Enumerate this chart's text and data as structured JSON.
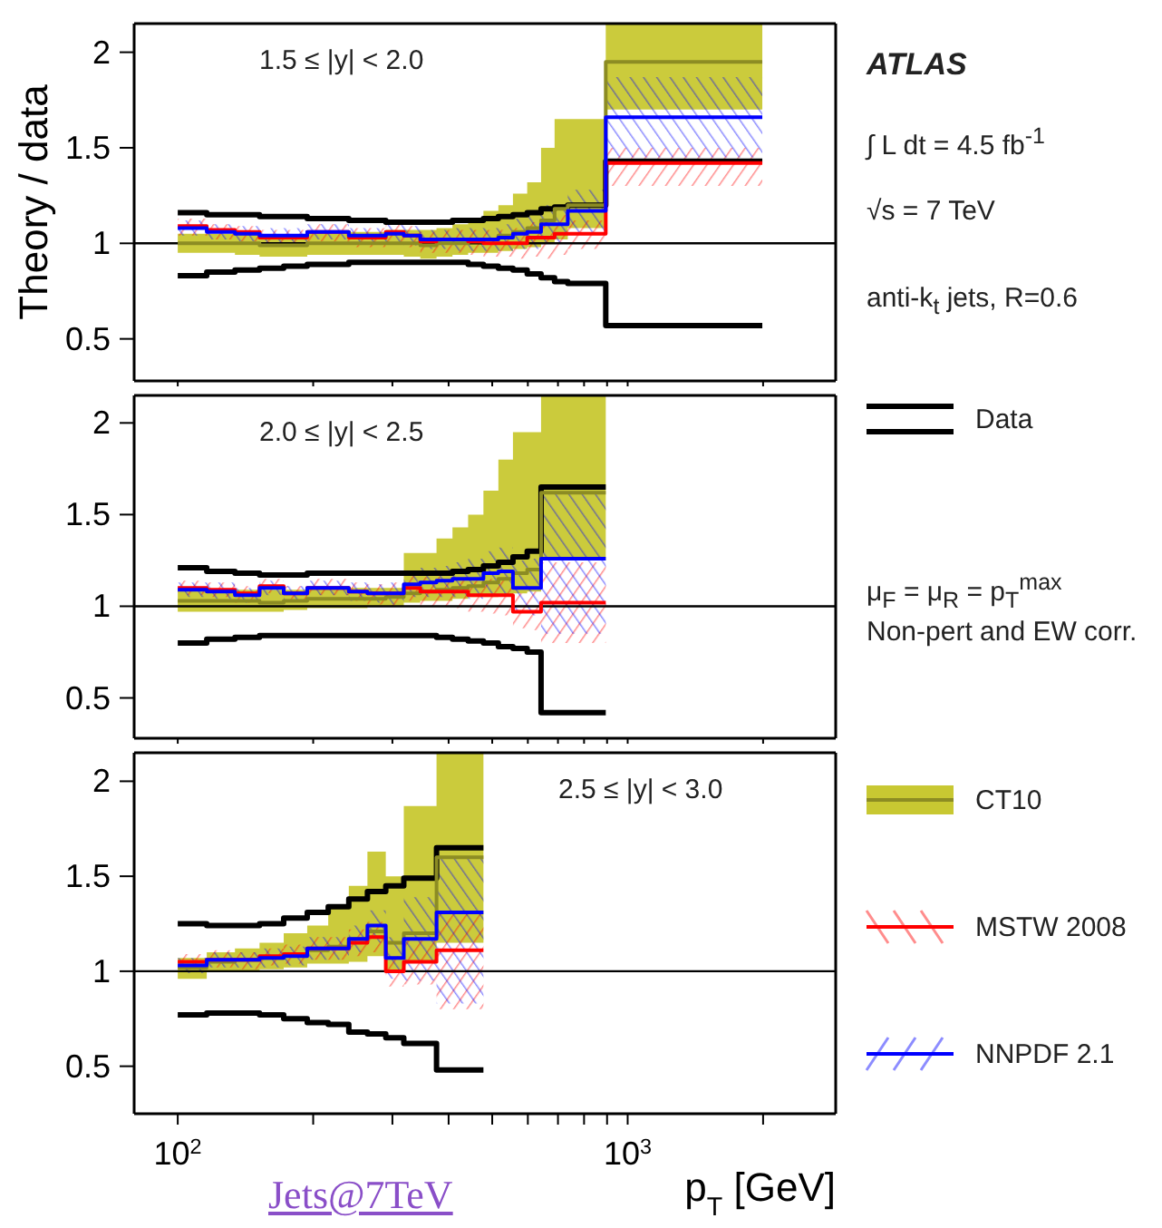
{
  "chart_data": [
    {
      "type": "step",
      "title": "1.5 ≤ |y| < 2.0",
      "ylabel": "Theory / data",
      "legend": "right",
      "tick_labels": "y",
      "grid": false,
      "marker": "none",
      "annotations": [
        "ATLAS",
        "∫ L dt = 4.5 fb$^{-1}$",
        "√s = 7 TeV",
        "anti-k$_{t}$ jets,  R=0.6",
        "μ$_{F}$ = μ$_{R}$ = p$_{T}$$^{max}$",
        "Non-pert and EW corr."
      ],
      "x": [
        100,
        116,
        134,
        152,
        172,
        194,
        216,
        240,
        264,
        290,
        318,
        346,
        376,
        408,
        442,
        478,
        516,
        556,
        598,
        642,
        688,
        736,
        894,
        1992
      ],
      "xlim": [
        80,
        2900
      ],
      "ylim": [
        0.28,
        2.15
      ],
      "log": "x",
      "xticks": [
        {
          "value": 100,
          "label": null
        },
        {
          "value": 200,
          "label": null
        },
        {
          "value": 300,
          "label": null
        },
        {
          "value": 400,
          "label": null
        },
        {
          "value": 500,
          "label": null
        },
        {
          "value": 600,
          "label": null
        },
        {
          "value": 700,
          "label": null
        },
        {
          "value": 800,
          "label": null
        },
        {
          "value": 900,
          "label": null
        },
        {
          "value": 1000,
          "label": null
        },
        {
          "value": 2000,
          "label": null
        }
      ],
      "yticks": [
        0.5,
        1,
        1.5,
        2
      ],
      "ref_lines": [
        {
          "axis": "y",
          "value": 1,
          "color": "#000000"
        }
      ],
      "series": [
        {
          "name": "Data",
          "color": "#000000",
          "values": [
            1.16,
            1.15,
            1.15,
            1.14,
            1.14,
            1.13,
            1.13,
            1.12,
            1.12,
            1.11,
            1.11,
            1.11,
            1.11,
            1.12,
            1.12,
            1.13,
            1.14,
            1.15,
            1.16,
            1.18,
            1.19,
            1.2,
            1.43,
            1.43
          ]
        },
        {
          "color": "#000000",
          "values": [
            0.83,
            0.85,
            0.86,
            0.87,
            0.88,
            0.89,
            0.89,
            0.9,
            0.9,
            0.9,
            0.9,
            0.9,
            0.9,
            0.9,
            0.89,
            0.88,
            0.87,
            0.86,
            0.84,
            0.82,
            0.8,
            0.79,
            0.57,
            0.57
          ]
        },
        {
          "name": "CT10",
          "color": "#c8c832",
          "values": [
            1.0,
            1.0,
            1.0,
            0.99,
            0.99,
            1.0,
            1.0,
            1.0,
            1.0,
            1.0,
            1.0,
            0.99,
            1.0,
            1.0,
            1.01,
            1.02,
            1.04,
            1.06,
            1.08,
            1.12,
            1.18,
            1.2,
            1.95,
            1.95
          ],
          "lower": [
            0.95,
            0.95,
            0.94,
            0.93,
            0.93,
            0.94,
            0.94,
            0.94,
            0.94,
            0.94,
            0.93,
            0.92,
            0.93,
            0.94,
            0.95,
            0.95,
            0.96,
            0.97,
            0.98,
            1.0,
            1.02,
            1.08,
            1.7,
            1.7
          ],
          "upper": [
            1.05,
            1.05,
            1.05,
            1.04,
            1.04,
            1.05,
            1.05,
            1.06,
            1.06,
            1.07,
            1.07,
            1.07,
            1.08,
            1.1,
            1.13,
            1.17,
            1.2,
            1.26,
            1.32,
            1.5,
            1.65,
            1.65,
            2.15,
            2.15
          ]
        },
        {
          "name": "MSTW 2008",
          "color": "#ff0000",
          "values": [
            1.09,
            1.07,
            1.06,
            1.03,
            1.03,
            1.06,
            1.06,
            1.03,
            1.03,
            1.06,
            1.04,
            1.01,
            1.02,
            1.02,
            1.01,
            1.0,
            1.0,
            1.0,
            1.03,
            1.03,
            1.05,
            1.05,
            1.42,
            1.42
          ],
          "lower": [
            1.04,
            1.02,
            1.01,
            0.99,
            0.99,
            1.01,
            1.01,
            0.98,
            0.98,
            1.0,
            0.98,
            0.95,
            0.95,
            0.95,
            0.94,
            0.93,
            0.93,
            0.92,
            0.93,
            0.92,
            0.94,
            0.97,
            1.3,
            1.3
          ],
          "upper": [
            1.13,
            1.1,
            1.09,
            1.07,
            1.07,
            1.1,
            1.1,
            1.08,
            1.08,
            1.1,
            1.09,
            1.06,
            1.07,
            1.07,
            1.07,
            1.07,
            1.07,
            1.08,
            1.11,
            1.12,
            1.15,
            1.12,
            1.5,
            1.5
          ]
        },
        {
          "name": "NNPDF 2.1",
          "color": "#0000ff",
          "values": [
            1.08,
            1.06,
            1.05,
            1.04,
            1.04,
            1.06,
            1.06,
            1.04,
            1.04,
            1.05,
            1.04,
            1.02,
            1.02,
            1.02,
            1.02,
            1.02,
            1.03,
            1.05,
            1.06,
            1.1,
            1.1,
            1.17,
            1.66,
            1.66
          ],
          "lower": [
            1.04,
            1.02,
            1.01,
            1.0,
            1.0,
            1.02,
            1.02,
            1.0,
            1.0,
            1.0,
            0.99,
            0.97,
            0.97,
            0.96,
            0.96,
            0.96,
            0.96,
            0.97,
            0.97,
            1.0,
            1.0,
            1.05,
            1.45,
            1.45
          ],
          "upper": [
            1.12,
            1.1,
            1.09,
            1.08,
            1.08,
            1.1,
            1.1,
            1.08,
            1.08,
            1.1,
            1.09,
            1.07,
            1.07,
            1.08,
            1.08,
            1.08,
            1.1,
            1.13,
            1.15,
            1.2,
            1.2,
            1.28,
            1.87,
            1.87
          ]
        }
      ]
    },
    {
      "type": "step",
      "title": "2.0 ≤ |y| < 2.5",
      "tick_labels": "y",
      "grid": false,
      "marker": "none",
      "x": [
        100,
        116,
        134,
        152,
        172,
        194,
        216,
        240,
        264,
        290,
        318,
        346,
        376,
        408,
        442,
        478,
        516,
        556,
        598,
        642,
        894
      ],
      "xlim": [
        80,
        2900
      ],
      "ylim": [
        0.28,
        2.15
      ],
      "log": "x",
      "xticks": [
        {
          "value": 100,
          "label": null
        },
        {
          "value": 200,
          "label": null
        },
        {
          "value": 300,
          "label": null
        },
        {
          "value": 400,
          "label": null
        },
        {
          "value": 500,
          "label": null
        },
        {
          "value": 600,
          "label": null
        },
        {
          "value": 700,
          "label": null
        },
        {
          "value": 800,
          "label": null
        },
        {
          "value": 900,
          "label": null
        },
        {
          "value": 1000,
          "label": null
        },
        {
          "value": 2000,
          "label": null
        }
      ],
      "yticks": [
        0.5,
        1,
        1.5,
        2
      ],
      "ref_lines": [
        {
          "axis": "y",
          "value": 1,
          "color": "#000000"
        }
      ],
      "series": [
        {
          "color": "#000000",
          "values": [
            1.21,
            1.19,
            1.18,
            1.17,
            1.17,
            1.18,
            1.18,
            1.18,
            1.18,
            1.18,
            1.18,
            1.18,
            1.18,
            1.19,
            1.2,
            1.22,
            1.24,
            1.27,
            1.3,
            1.65,
            1.65
          ]
        },
        {
          "color": "#000000",
          "values": [
            0.8,
            0.82,
            0.83,
            0.84,
            0.84,
            0.84,
            0.84,
            0.84,
            0.84,
            0.84,
            0.84,
            0.84,
            0.83,
            0.82,
            0.81,
            0.8,
            0.78,
            0.77,
            0.75,
            0.42,
            0.42
          ]
        },
        {
          "color": "#c8c832",
          "values": [
            1.03,
            1.03,
            1.03,
            1.02,
            1.03,
            1.04,
            1.04,
            1.04,
            1.04,
            1.05,
            1.07,
            1.08,
            1.09,
            1.1,
            1.11,
            1.13,
            1.15,
            1.18,
            1.2,
            1.62,
            1.62
          ],
          "lower": [
            0.97,
            0.97,
            0.97,
            0.97,
            0.98,
            0.99,
            0.99,
            0.99,
            1.0,
            1.0,
            1.02,
            1.03,
            1.03,
            1.04,
            1.05,
            1.05,
            1.06,
            1.07,
            1.08,
            1.25,
            1.25
          ],
          "upper": [
            1.09,
            1.09,
            1.09,
            1.09,
            1.09,
            1.1,
            1.1,
            1.1,
            1.1,
            1.1,
            1.29,
            1.29,
            1.37,
            1.43,
            1.5,
            1.63,
            1.8,
            1.95,
            1.95,
            2.15,
            2.15
          ]
        },
        {
          "color": "#ff0000",
          "values": [
            1.1,
            1.09,
            1.07,
            1.11,
            1.07,
            1.1,
            1.1,
            1.08,
            1.07,
            1.07,
            1.1,
            1.08,
            1.08,
            1.08,
            1.06,
            1.06,
            1.06,
            0.97,
            0.97,
            1.02,
            1.02
          ],
          "lower": [
            1.06,
            1.05,
            1.02,
            1.07,
            1.03,
            1.06,
            1.06,
            1.03,
            1.01,
            1.0,
            1.03,
            1.0,
            1.0,
            0.99,
            0.97,
            0.96,
            0.95,
            0.88,
            0.87,
            0.8,
            0.8
          ],
          "upper": [
            1.14,
            1.13,
            1.11,
            1.15,
            1.11,
            1.15,
            1.15,
            1.13,
            1.12,
            1.13,
            1.17,
            1.16,
            1.16,
            1.16,
            1.14,
            1.15,
            1.16,
            1.07,
            1.08,
            1.24,
            1.24
          ]
        },
        {
          "color": "#0000ff",
          "values": [
            1.09,
            1.08,
            1.06,
            1.1,
            1.07,
            1.1,
            1.1,
            1.08,
            1.07,
            1.07,
            1.12,
            1.13,
            1.14,
            1.15,
            1.15,
            1.18,
            1.19,
            1.1,
            1.1,
            1.26,
            1.26
          ],
          "lower": [
            1.05,
            1.04,
            1.02,
            1.06,
            1.03,
            1.06,
            1.06,
            1.03,
            1.02,
            1.01,
            1.05,
            1.05,
            1.05,
            1.05,
            1.04,
            1.06,
            1.06,
            0.96,
            0.95,
            0.85,
            0.85
          ],
          "upper": [
            1.13,
            1.13,
            1.1,
            1.14,
            1.11,
            1.14,
            1.14,
            1.13,
            1.12,
            1.13,
            1.19,
            1.21,
            1.22,
            1.24,
            1.26,
            1.3,
            1.32,
            1.25,
            1.26,
            1.62,
            1.62
          ]
        }
      ]
    },
    {
      "type": "step",
      "title": "2.5 ≤ |y| < 3.0",
      "xlabel": "p$_{T}$ [GeV]",
      "grid": false,
      "marker": "none",
      "annotations": [
        "Jets@7TeV"
      ],
      "x": [
        100,
        116,
        134,
        152,
        172,
        194,
        216,
        240,
        264,
        290,
        318,
        376,
        478
      ],
      "xlim": [
        80,
        2900
      ],
      "ylim": [
        0.25,
        2.15
      ],
      "log": "x",
      "xticks": [
        {
          "value": 100,
          "label": "10$^{2}$"
        },
        {
          "value": 200,
          "label": null
        },
        {
          "value": 300,
          "label": null
        },
        {
          "value": 400,
          "label": null
        },
        {
          "value": 500,
          "label": null
        },
        {
          "value": 600,
          "label": null
        },
        {
          "value": 700,
          "label": null
        },
        {
          "value": 800,
          "label": null
        },
        {
          "value": 900,
          "label": null
        },
        {
          "value": 1000,
          "label": "10$^{3}$"
        },
        {
          "value": 2000,
          "label": null
        }
      ],
      "yticks": [
        0.5,
        1,
        1.5,
        2
      ],
      "ref_lines": [
        {
          "axis": "y",
          "value": 1,
          "color": "#000000"
        }
      ],
      "series": [
        {
          "color": "#000000",
          "values": [
            1.25,
            1.24,
            1.24,
            1.25,
            1.28,
            1.31,
            1.34,
            1.38,
            1.42,
            1.45,
            1.49,
            1.65,
            1.65
          ]
        },
        {
          "color": "#000000",
          "values": [
            0.77,
            0.78,
            0.78,
            0.77,
            0.75,
            0.73,
            0.72,
            0.68,
            0.67,
            0.65,
            0.62,
            0.48,
            0.48
          ]
        },
        {
          "color": "#c8c832",
          "values": [
            1.02,
            1.05,
            1.06,
            1.07,
            1.09,
            1.11,
            1.13,
            1.17,
            1.21,
            1.15,
            1.2,
            1.6,
            1.6
          ],
          "lower": [
            0.96,
            1.0,
            1.0,
            1.01,
            1.02,
            1.04,
            1.04,
            1.05,
            1.08,
            1.0,
            1.05,
            1.15,
            1.15
          ],
          "upper": [
            1.07,
            1.1,
            1.12,
            1.15,
            1.2,
            1.24,
            1.35,
            1.45,
            1.63,
            1.5,
            1.87,
            2.15,
            2.15
          ]
        },
        {
          "color": "#ff0000",
          "values": [
            1.05,
            1.06,
            1.06,
            1.08,
            1.09,
            1.12,
            1.12,
            1.15,
            1.18,
            1.0,
            1.05,
            1.11,
            1.11
          ],
          "lower": [
            1.01,
            1.02,
            1.01,
            1.03,
            1.04,
            1.06,
            1.06,
            1.08,
            1.1,
            0.92,
            0.93,
            0.8,
            0.8
          ],
          "upper": [
            1.09,
            1.11,
            1.1,
            1.12,
            1.14,
            1.18,
            1.18,
            1.22,
            1.26,
            1.08,
            1.17,
            1.3,
            1.3
          ]
        },
        {
          "color": "#0000ff",
          "values": [
            1.03,
            1.06,
            1.06,
            1.07,
            1.08,
            1.12,
            1.12,
            1.17,
            1.24,
            1.07,
            1.17,
            1.31,
            1.31
          ],
          "lower": [
            0.99,
            1.02,
            1.02,
            1.02,
            1.03,
            1.06,
            1.06,
            1.1,
            1.15,
            0.96,
            0.95,
            0.83,
            0.83
          ],
          "upper": [
            1.07,
            1.1,
            1.1,
            1.12,
            1.13,
            1.18,
            1.18,
            1.24,
            1.32,
            1.18,
            1.39,
            1.6,
            1.6
          ]
        }
      ]
    }
  ]
}
